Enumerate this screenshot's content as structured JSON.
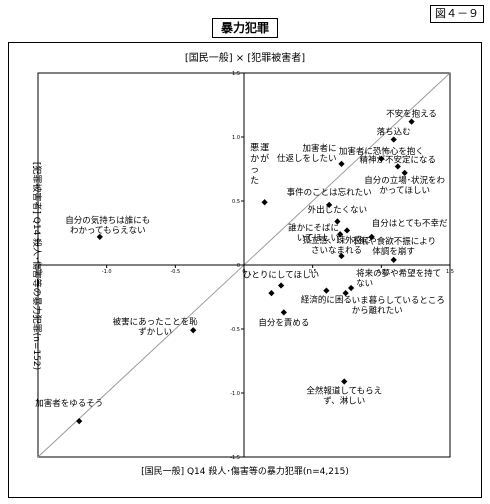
{
  "header": {
    "title": "暴力犯罪",
    "figure_label": "図４－９"
  },
  "chart_data": {
    "type": "scatter",
    "title": "[国民一般] × [犯罪被害者]",
    "xlabel": "[国民一般] Q14 殺人･傷害等の暴力犯罪(n=4,215)",
    "ylabel": "[犯罪被害者] Q14 殺人･傷害等の暴力犯罪(n=152)",
    "xlim": [
      -1.5,
      1.5
    ],
    "ylim": [
      -1.5,
      1.5
    ],
    "x_ticks": [
      "-1.5",
      "-1.0",
      "-0.5",
      "0",
      "0.5",
      "1.0",
      "1.5"
    ],
    "y_ticks": [
      "1.5",
      "1.0",
      "0.5",
      "0",
      "-0.5",
      "-1.0",
      "-1.5"
    ],
    "diagonal": true,
    "points": [
      {
        "x": 1.22,
        "y": 1.12,
        "label": [
          "不安を抱える"
        ]
      },
      {
        "x": 1.09,
        "y": 0.98,
        "label": [
          "落ち込む"
        ]
      },
      {
        "x": 1.0,
        "y": 0.83,
        "label": [
          "加害者に恐怖心を抱く"
        ]
      },
      {
        "x": 1.12,
        "y": 0.77,
        "label": [
          "精神が不安定になる"
        ]
      },
      {
        "x": 1.17,
        "y": 0.72,
        "label": [
          "自分の立場･状況をわ",
          "かってほしい"
        ]
      },
      {
        "x": 0.71,
        "y": 0.79,
        "label": [
          "加害者に",
          "仕返しをしたい"
        ]
      },
      {
        "x": 0.15,
        "y": 0.49,
        "label": [
          "悪",
          "か",
          "っ",
          "た",
          "運",
          "が"
        ]
      },
      {
        "x": 0.62,
        "y": 0.47,
        "label": [
          "事件のことは忘れたい"
        ]
      },
      {
        "x": 0.68,
        "y": 0.34,
        "label": [
          "外出したくない"
        ]
      },
      {
        "x": 0.75,
        "y": 0.27,
        "label": [
          "誰かにそばに",
          "いてほしい"
        ]
      },
      {
        "x": 0.93,
        "y": 0.22,
        "label": [
          "自分はとても不幸だ"
        ]
      },
      {
        "x": 0.7,
        "y": 0.24,
        "label": [
          "自分はとても不幸だ(2)"
        ]
      },
      {
        "x": 0.71,
        "y": 0.07,
        "label": [
          "孤立感、疎外感に",
          "さいなまれる"
        ]
      },
      {
        "x": 1.09,
        "y": 0.04,
        "label": [
          "不眠や食欲不振により",
          "体調を崩す"
        ]
      },
      {
        "x": 0.27,
        "y": -0.16,
        "label": [
          "ひとりにしてほしい"
        ]
      },
      {
        "x": 0.6,
        "y": -0.2,
        "label": [
          "経済的に困る"
        ]
      },
      {
        "x": 0.2,
        "y": -0.22,
        "label": [
          "経済的に困る(2)"
        ]
      },
      {
        "x": 0.78,
        "y": -0.18,
        "label": [
          "将来の夢や希望を持て",
          "ない"
        ]
      },
      {
        "x": 0.74,
        "y": -0.22,
        "label": [
          "いま暮らしているところ",
          "から離れたい"
        ]
      },
      {
        "x": 0.29,
        "y": -0.37,
        "label": [
          "自分を責める"
        ]
      },
      {
        "x": -1.05,
        "y": 0.22,
        "label": [
          "自分の気持ちは誰にも",
          "わかってもらえない"
        ]
      },
      {
        "x": -0.37,
        "y": -0.51,
        "label": [
          "被害にあったことを恥",
          "ずかしい"
        ]
      },
      {
        "x": -1.2,
        "y": -1.22,
        "label": [
          "加害者をゆるそう"
        ]
      },
      {
        "x": 0.73,
        "y": -0.91,
        "label": [
          "全然報道してもらえ",
          "ず、淋しい"
        ]
      }
    ]
  }
}
